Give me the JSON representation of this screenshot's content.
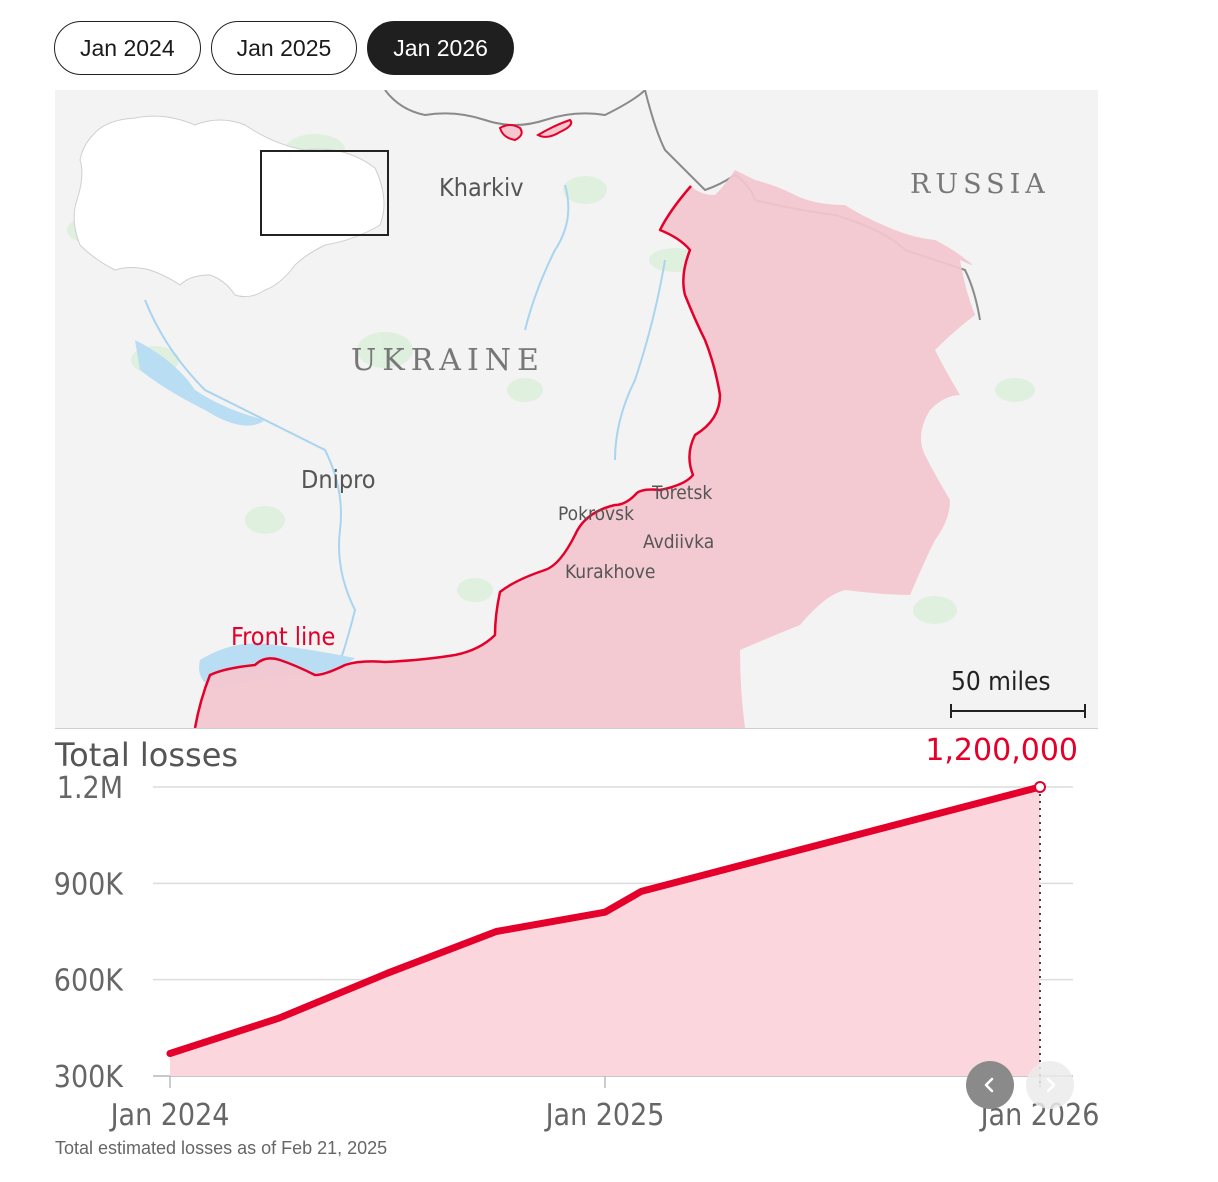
{
  "tabs": [
    {
      "label": "Jan 2024",
      "active": false
    },
    {
      "label": "Jan 2025",
      "active": false
    },
    {
      "label": "Jan 2026",
      "active": true
    }
  ],
  "map": {
    "labels": {
      "kharkiv": "Kharkiv",
      "russia": "RUSSIA",
      "ukraine": "UKRAINE",
      "dnipro": "Dnipro",
      "toretsk": "Toretsk",
      "pokrovsk": "Pokrovsk",
      "avdiivka": "Avdiivka",
      "kurakhove": "Kurakhove",
      "front_line": "Front line",
      "scale": "50 miles"
    },
    "colors": {
      "occupied_fill": "#f4c7cf",
      "front_line": "#e4002b",
      "border": "#8a8a8a",
      "land": "#f3f3f3",
      "water": "#b9ddf3"
    }
  },
  "chart_data": {
    "type": "area",
    "title": "Total losses",
    "x": [
      "2024-01",
      "2024-04",
      "2024-07",
      "2024-10",
      "2025-01",
      "2025-02",
      "2026-01"
    ],
    "series": [
      {
        "values": [
          370000,
          480000,
          620000,
          750000,
          810000,
          875000,
          1200000
        ]
      }
    ],
    "x_ticks": [
      "Jan 2024",
      "Jan 2025",
      "Jan 2026"
    ],
    "y_ticks": [
      "300K",
      "600K",
      "900K",
      "1.2M"
    ],
    "ylim": [
      300000,
      1200000
    ],
    "grid": true,
    "endpoint_label": "1,200,000",
    "colors": {
      "line": "#e4002b",
      "fill": "#fbd6dd",
      "endpoint": "#e4002b"
    }
  },
  "footnote": "Total estimated losses as of Feb 21, 2025"
}
